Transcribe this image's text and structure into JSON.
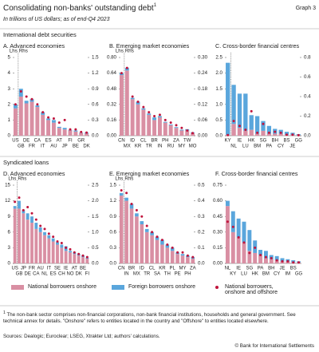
{
  "header": {
    "title": "Consolidating non-banks' outstanding debt",
    "title_sup": "1",
    "graph": "Graph 3",
    "subtitle": "In trillions of US dollars; as of end-Q4 2023"
  },
  "sections": [
    "International debt securities",
    "Syndicated loans"
  ],
  "chart_data": [
    {
      "type": "bar",
      "stacked": true,
      "title": "A. Advanced economies",
      "lhs_label": "Lhs",
      "rhs_label": "Rhs",
      "y2_start": 1,
      "categories": [
        "US",
        "GB",
        "DE",
        "FR",
        "CA",
        "IT",
        "ES",
        "AU",
        "AT",
        "JP",
        "FI",
        "BE",
        "GR",
        "DK"
      ],
      "ylim": [
        0,
        5
      ],
      "yticks": [
        0,
        1,
        2,
        3,
        4,
        5
      ],
      "y2lim": [
        0,
        1.5
      ],
      "y2ticks": [
        {
          "value": 0,
          "label": "0.0"
        },
        0.3,
        0.6,
        0.9,
        1.2,
        1.5
      ],
      "series": [
        {
          "name": "National borrowers onshore",
          "type": "bar",
          "color": "#d98fa3",
          "values": [
            1.75,
            0.75,
            0.62,
            0.65,
            0.55,
            0.4,
            0.3,
            0.25,
            0.15,
            0.12,
            0.1,
            0.08,
            0.05,
            0.04
          ]
        },
        {
          "name": "Foreign borrowers onshore",
          "type": "bar",
          "color": "#5aa6dc",
          "values": [
            0.25,
            0.15,
            0.05,
            0.05,
            0.03,
            0.05,
            0.03,
            0.05,
            0.02,
            0.03,
            0.01,
            0.02,
            0.01,
            0.02
          ]
        },
        {
          "name": "National borrowers, onshore and offshore",
          "type": "dot",
          "color": "#c0143c",
          "values": [
            2.0,
            0.85,
            0.75,
            0.7,
            0.6,
            0.45,
            0.35,
            0.33,
            0.25,
            0.3,
            0.12,
            0.12,
            0.07,
            0.06
          ]
        }
      ]
    },
    {
      "type": "bar",
      "stacked": true,
      "title": "B. Emerging market economies",
      "lhs_label": "Lhs",
      "rhs_label": "Rhs",
      "y2_start": 1,
      "categories": [
        "CN",
        "MX",
        "ID",
        "KR",
        "CL",
        "TR",
        "BR",
        "IN",
        "PH",
        "RU",
        "ZA",
        "MY",
        "TW",
        "MO"
      ],
      "ylim": [
        0,
        0.8
      ],
      "yticks": [
        {
          "value": 0,
          "label": "0.00"
        },
        0.16,
        0.32,
        0.48,
        0.64,
        {
          "value": 0.8,
          "label": "0.80"
        }
      ],
      "y2lim": [
        0,
        0.3
      ],
      "y2ticks": [
        {
          "value": 0,
          "label": "0.00"
        },
        0.06,
        0.12,
        0.18,
        0.24,
        {
          "value": 0.3,
          "label": "0.30"
        }
      ],
      "series": [
        {
          "type": "bar",
          "color": "#d98fa3",
          "values": [
            0.62,
            0.25,
            0.14,
            0.12,
            0.1,
            0.08,
            0.06,
            0.07,
            0.05,
            0.04,
            0.03,
            0.02,
            0.02,
            0.01
          ]
        },
        {
          "type": "bar",
          "color": "#5aa6dc",
          "values": [
            0.02,
            0.01,
            0.005,
            0.01,
            0.005,
            0.005,
            0.01,
            0.005,
            0.003,
            0.003,
            0.003,
            0.003,
            0.005,
            0.003
          ]
        },
        {
          "type": "dot",
          "color": "#c0143c",
          "values": [
            0.64,
            0.26,
            0.15,
            0.13,
            0.11,
            0.09,
            0.075,
            0.08,
            0.06,
            0.05,
            0.04,
            0.03,
            0.02,
            0.01
          ]
        }
      ]
    },
    {
      "type": "bar",
      "stacked": true,
      "title": "C. Cross-border financial centres",
      "y2_start": 1,
      "categories": [
        "KY",
        "NL",
        "IE",
        "LU",
        "HK",
        "BM",
        "SG",
        "PA",
        "BH",
        "CY",
        "BS",
        "JE",
        "GG"
      ],
      "ylim": [
        0,
        2.5
      ],
      "yticks": [
        {
          "value": 0,
          "label": "0.0"
        },
        0.5,
        {
          "value": 1,
          "label": "1.0"
        },
        1.5,
        {
          "value": 2,
          "label": "2.0"
        },
        2.5
      ],
      "y2lim": [
        0,
        0.8
      ],
      "y2ticks": [
        {
          "value": 0,
          "label": "0.0"
        },
        0.2,
        0.4,
        0.6,
        0.8
      ],
      "series": [
        {
          "type": "bar",
          "color": "#d98fa3",
          "values": [
            0.03,
            0.12,
            0.08,
            0.05,
            0.06,
            0.02,
            0.05,
            0.02,
            0.02,
            0.02,
            0.01,
            0.01,
            0.005
          ]
        },
        {
          "type": "bar",
          "color": "#5aa6dc",
          "values": [
            2.3,
            0.4,
            0.35,
            0.38,
            0.15,
            0.18,
            0.1,
            0.08,
            0.05,
            0.04,
            0.03,
            0.02,
            0.01
          ]
        },
        {
          "type": "dot",
          "color": "#c0143c",
          "values": [
            0.02,
            0.15,
            0.1,
            0.06,
            0.25,
            0.03,
            0.12,
            0.03,
            0.04,
            0.03,
            0.01,
            0.01,
            0.005
          ]
        }
      ]
    },
    {
      "type": "bar",
      "stacked": true,
      "title": "D. Advanced economies",
      "lhs_label": "Lhs",
      "rhs_label": "Rhs",
      "y2_start": 1,
      "categories": [
        "US",
        "GB",
        "JP",
        "DE",
        "FR",
        "CA",
        "AU",
        "NL",
        "IT",
        "ES",
        "SE",
        "CH",
        "IE",
        "NO",
        "AT",
        "DK",
        "BE",
        "FI"
      ],
      "ylim": [
        0,
        15
      ],
      "yticks": [
        0,
        3,
        6,
        9,
        12,
        15
      ],
      "y2lim": [
        0,
        2.5
      ],
      "y2ticks": [
        {
          "value": 0,
          "label": "0.0"
        },
        0.5,
        {
          "value": 1,
          "label": "1.0"
        },
        1.5,
        {
          "value": 2,
          "label": "2.0"
        },
        2.5
      ],
      "series": [
        {
          "type": "bar",
          "color": "#d98fa3",
          "values": [
            10.5,
            1.75,
            1.6,
            1.4,
            1.3,
            1.1,
            1.0,
            0.9,
            0.8,
            0.7,
            0.6,
            0.5,
            0.4,
            0.35,
            0.3,
            0.25,
            0.2,
            0.15
          ]
        },
        {
          "type": "bar",
          "color": "#5aa6dc",
          "values": [
            0.5,
            0.25,
            0.1,
            0.2,
            0.2,
            0.2,
            0.15,
            0.1,
            0.1,
            0.1,
            0.08,
            0.1,
            0.15,
            0.05,
            0.05,
            0.05,
            0.05,
            0.03
          ]
        },
        {
          "type": "dot",
          "color": "#c0143c",
          "values": [
            11.8,
            2.1,
            1.7,
            1.8,
            1.6,
            1.4,
            1.2,
            1.1,
            0.95,
            0.85,
            0.7,
            0.65,
            0.5,
            0.45,
            0.35,
            0.3,
            0.25,
            0.2
          ]
        }
      ]
    },
    {
      "type": "bar",
      "stacked": true,
      "title": "E. Emerging market economies",
      "lhs_label": "Lhs",
      "rhs_label": "Rhs",
      "y2_start": 1,
      "categories": [
        "CN",
        "IN",
        "BR",
        "MX",
        "ID",
        "TR",
        "CL",
        "SA",
        "KR",
        "TH",
        "PL",
        "PE",
        "MY",
        "PH",
        "ZA"
      ],
      "ylim": [
        0,
        1.5
      ],
      "yticks": [
        {
          "value": 0,
          "label": "0.0"
        },
        0.3,
        0.6,
        0.9,
        1.2,
        1.5
      ],
      "y2lim": [
        0,
        0.5
      ],
      "y2ticks": [
        {
          "value": 0,
          "label": "0.0"
        },
        0.1,
        0.2,
        0.3,
        0.4,
        0.5
      ],
      "series": [
        {
          "type": "bar",
          "color": "#d98fa3",
          "values": [
            1.3,
            0.4,
            0.35,
            0.3,
            0.25,
            0.2,
            0.18,
            0.15,
            0.12,
            0.1,
            0.08,
            0.06,
            0.05,
            0.04,
            0.03
          ]
        },
        {
          "type": "bar",
          "color": "#5aa6dc",
          "values": [
            0.05,
            0.02,
            0.03,
            0.02,
            0.02,
            0.02,
            0.02,
            0.02,
            0.03,
            0.02,
            0.02,
            0.01,
            0.01,
            0.01,
            0.01
          ]
        },
        {
          "type": "dot",
          "color": "#c0143c",
          "values": [
            1.4,
            0.45,
            0.38,
            0.34,
            0.3,
            0.24,
            0.2,
            0.17,
            0.15,
            0.12,
            0.1,
            0.07,
            0.07,
            0.05,
            0.04
          ]
        }
      ]
    },
    {
      "type": "bar",
      "stacked": true,
      "title": "F. Cross-border financial centres",
      "categories": [
        "NL",
        "KY",
        "IE",
        "LU",
        "SG",
        "HK",
        "PA",
        "BM",
        "BH",
        "CY",
        "JE",
        "IM",
        "BS",
        "GG"
      ],
      "ylim": [
        0,
        0.75
      ],
      "yticks": [
        {
          "value": 0,
          "label": "0.00"
        },
        0.15,
        {
          "value": 0.3,
          "label": "0.30"
        },
        0.45,
        {
          "value": 0.6,
          "label": "0.60"
        },
        0.75
      ],
      "series": [
        {
          "type": "bar",
          "color": "#d98fa3",
          "values": [
            0.55,
            0.3,
            0.25,
            0.2,
            0.12,
            0.1,
            0.08,
            0.05,
            0.04,
            0.03,
            0.02,
            0.02,
            0.01,
            0.01
          ]
        },
        {
          "type": "bar",
          "color": "#5aa6dc",
          "values": [
            0.05,
            0.2,
            0.18,
            0.2,
            0.2,
            0.12,
            0.05,
            0.07,
            0.04,
            0.04,
            0.03,
            0.02,
            0.02,
            0.01
          ]
        },
        {
          "type": "dot",
          "color": "#c0143c",
          "values": [
            0.4,
            0.35,
            0.25,
            0.2,
            0.1,
            0.15,
            0.08,
            0.06,
            0.05,
            0.03,
            0.02,
            0.02,
            0.01,
            0.01
          ]
        }
      ]
    }
  ],
  "footnote": {
    "marker": "1",
    "text": "The non-bank sector comprises non-financial corporations, non-bank financial institutions, households and general government. See technical annex for details. \"Onshore\" refers to entities located in the country and \"Offshore\" to entities located elsewhere."
  },
  "sources": "Sources: Dealogic; Euroclear; LSEG, Xtrakter Ltd; authors' calculations.",
  "copyright": "© Bank for International Settlements"
}
